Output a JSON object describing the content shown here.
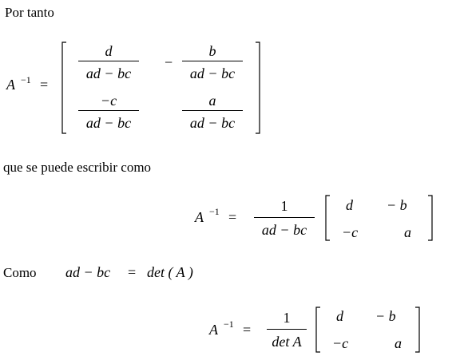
{
  "text": {
    "line1": "Por tanto",
    "line2": "que se puede escribir como",
    "line3": "Como"
  },
  "eq1": {
    "lhs": "A",
    "exp": "−1",
    "eq": "=",
    "m11_num": "d",
    "m11_den": "ad − bc",
    "m12_sign": "−",
    "m12_num": "b",
    "m12_den": "ad − bc",
    "m21_num": "−c",
    "m21_den": "ad − bc",
    "m22_num": "a",
    "m22_den": "ad − bc"
  },
  "eq2": {
    "lhs": "A",
    "exp": "−1",
    "eq": "=",
    "num": "1",
    "den": "ad − bc",
    "m11": "d",
    "m12": "− b",
    "m21": "−c",
    "m22": "a"
  },
  "eq3": {
    "lhs": "ad − bc",
    "eq": "=",
    "rhs": "det ( A )"
  },
  "eq4": {
    "lhs": "A",
    "exp": "−1",
    "eq": "=",
    "num": "1",
    "den": "det A",
    "m11": "d",
    "m12": "− b",
    "m21": "−c",
    "m22": "a"
  }
}
